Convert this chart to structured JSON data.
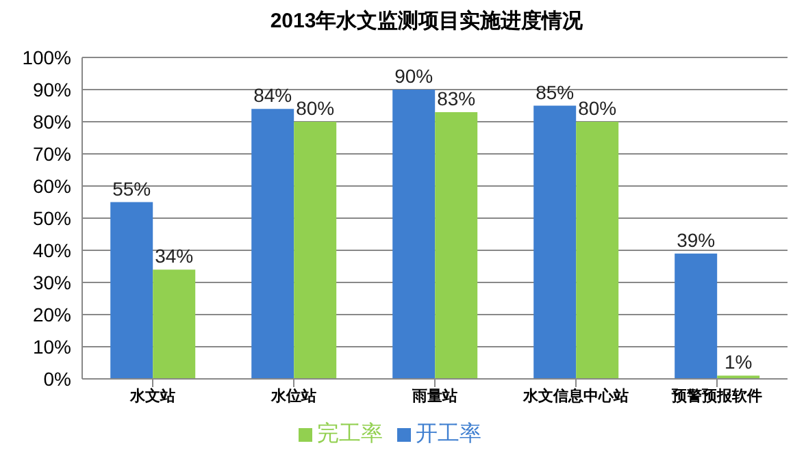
{
  "chart_data": {
    "type": "bar",
    "title": "2013年水文监测项目实施进度情况",
    "categories": [
      "水文站",
      "水位站",
      "雨量站",
      "水文信息中心站",
      "预警预报软件"
    ],
    "series": [
      {
        "name": "开工率",
        "color": "#3f7fd0",
        "values": [
          55,
          84,
          90,
          85,
          39
        ],
        "value_labels": [
          "55%",
          "84%",
          "90%",
          "85%",
          "39%"
        ]
      },
      {
        "name": "完工率",
        "color": "#92d050",
        "values": [
          34,
          80,
          83,
          80,
          1
        ],
        "value_labels": [
          "34%",
          "80%",
          "83%",
          "80%",
          "1%"
        ]
      }
    ],
    "ylim": [
      0,
      100
    ],
    "yticks": [
      {
        "value": 0,
        "label": "0%"
      },
      {
        "value": 10,
        "label": "10%"
      },
      {
        "value": 20,
        "label": "20%"
      },
      {
        "value": 30,
        "label": "30%"
      },
      {
        "value": 40,
        "label": "40%"
      },
      {
        "value": 50,
        "label": "50%"
      },
      {
        "value": 60,
        "label": "60%"
      },
      {
        "value": 70,
        "label": "70%"
      },
      {
        "value": 80,
        "label": "80%"
      },
      {
        "value": 90,
        "label": "90%"
      },
      {
        "value": 100,
        "label": "100%"
      }
    ],
    "grid": "y",
    "legend": "bottom"
  }
}
